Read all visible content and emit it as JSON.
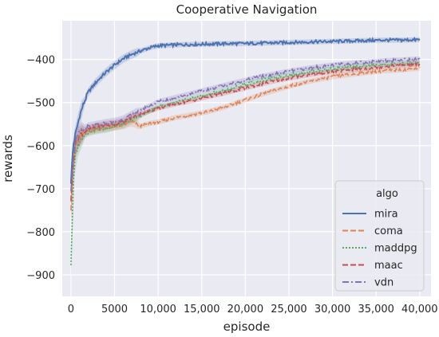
{
  "chart_data": {
    "type": "line",
    "title": "Cooperative Navigation",
    "xlabel": "episode",
    "ylabel": "rewards",
    "xlim": [
      -1000,
      41300
    ],
    "ylim": [
      -950,
      -310
    ],
    "x_ticks": [
      0,
      5000,
      10000,
      15000,
      20000,
      25000,
      30000,
      35000,
      40000
    ],
    "x_tick_labels": [
      "0",
      "5000",
      "10,000",
      "15,000",
      "20,000",
      "25,000",
      "30,000",
      "35,000",
      "40,000"
    ],
    "y_ticks": [
      -900,
      -800,
      -700,
      -600,
      -500,
      -400
    ],
    "y_tick_labels": [
      "−900",
      "−800",
      "−700",
      "−600",
      "−500",
      "−400"
    ],
    "grid": true,
    "background": "#eaeaf2",
    "legend": {
      "title": "algo",
      "placement": "lower-right"
    },
    "series": [
      {
        "name": "mira",
        "color": "#4c72b0",
        "dash": "solid",
        "x": [
          0,
          250,
          500,
          1000,
          1500,
          2000,
          3000,
          4000,
          5000,
          6000,
          7000,
          8000,
          9000,
          10000,
          12000,
          14000,
          16000,
          18000,
          20000,
          22000,
          24000,
          26000,
          28000,
          30000,
          32000,
          34000,
          36000,
          38000,
          40000
        ],
        "y": [
          -685,
          -600,
          -575,
          -530,
          -500,
          -475,
          -450,
          -430,
          -413,
          -398,
          -388,
          -380,
          -373,
          -368,
          -366,
          -365,
          -364,
          -363,
          -363,
          -362,
          -361,
          -360,
          -359,
          -358,
          -357,
          -356,
          -355,
          -355,
          -354
        ]
      },
      {
        "name": "coma",
        "color": "#dd8452",
        "dash": "dashed",
        "x": [
          0,
          250,
          500,
          1000,
          1500,
          2000,
          3000,
          4000,
          5000,
          6000,
          7000,
          8000,
          9000,
          10000,
          12000,
          14000,
          16000,
          18000,
          20000,
          22000,
          24000,
          26000,
          28000,
          30000,
          32000,
          34000,
          36000,
          38000,
          40000
        ],
        "y": [
          -745,
          -650,
          -600,
          -580,
          -572,
          -566,
          -561,
          -558,
          -555,
          -552,
          -545,
          -555,
          -548,
          -545,
          -535,
          -528,
          -520,
          -508,
          -494,
          -480,
          -468,
          -457,
          -448,
          -440,
          -435,
          -430,
          -426,
          -424,
          -420
        ]
      },
      {
        "name": "maddpg",
        "color": "#55a868",
        "dash": "dotted",
        "x": [
          0,
          250,
          500,
          1000,
          1500,
          2000,
          3000,
          4000,
          5000,
          6000,
          7000,
          8000,
          9000,
          10000,
          12000,
          14000,
          16000,
          18000,
          20000,
          22000,
          24000,
          26000,
          28000,
          30000,
          32000,
          34000,
          36000,
          38000,
          40000
        ],
        "y": [
          -875,
          -700,
          -620,
          -590,
          -575,
          -568,
          -563,
          -560,
          -555,
          -550,
          -540,
          -530,
          -520,
          -510,
          -500,
          -490,
          -480,
          -470,
          -458,
          -448,
          -440,
          -433,
          -427,
          -422,
          -418,
          -414,
          -412,
          -410,
          -408
        ]
      },
      {
        "name": "maac",
        "color": "#c44e52",
        "dash": "dashed",
        "x": [
          0,
          250,
          500,
          1000,
          1500,
          2000,
          3000,
          4000,
          5000,
          6000,
          7000,
          8000,
          9000,
          10000,
          12000,
          14000,
          16000,
          18000,
          20000,
          22000,
          24000,
          26000,
          28000,
          30000,
          32000,
          34000,
          36000,
          38000,
          40000
        ],
        "y": [
          -725,
          -640,
          -595,
          -575,
          -568,
          -562,
          -557,
          -553,
          -550,
          -545,
          -535,
          -527,
          -520,
          -513,
          -503,
          -495,
          -485,
          -476,
          -466,
          -456,
          -447,
          -440,
          -433,
          -428,
          -424,
          -420,
          -416,
          -413,
          -410
        ]
      },
      {
        "name": "vdn",
        "color": "#8172b3",
        "dash": "dashdot",
        "x": [
          0,
          250,
          500,
          1000,
          1500,
          2000,
          3000,
          4000,
          5000,
          6000,
          7000,
          8000,
          9000,
          10000,
          12000,
          14000,
          16000,
          18000,
          20000,
          22000,
          24000,
          26000,
          28000,
          30000,
          32000,
          34000,
          36000,
          38000,
          40000
        ],
        "y": [
          -700,
          -630,
          -590,
          -570,
          -562,
          -556,
          -552,
          -548,
          -545,
          -540,
          -528,
          -518,
          -508,
          -498,
          -488,
          -478,
          -468,
          -458,
          -448,
          -439,
          -431,
          -424,
          -418,
          -413,
          -409,
          -406,
          -403,
          -401,
          -399
        ]
      }
    ]
  }
}
